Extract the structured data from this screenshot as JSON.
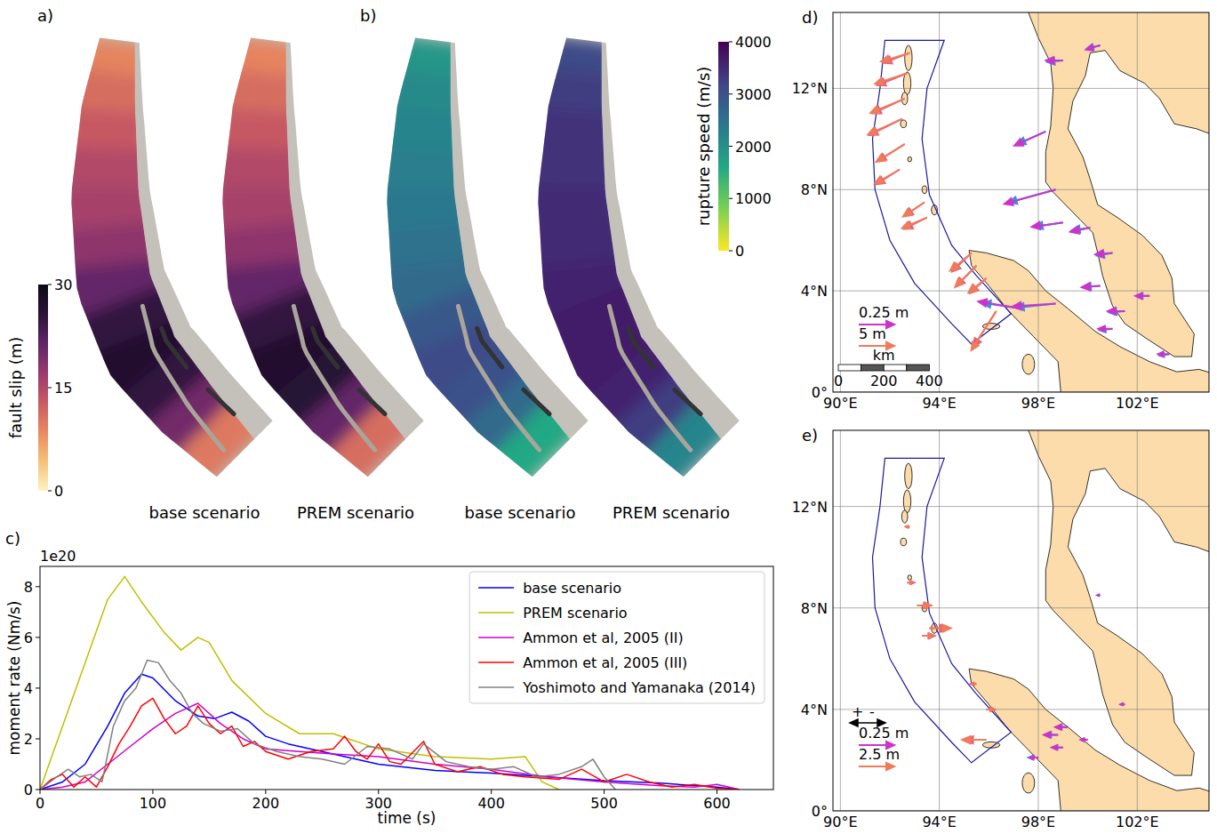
{
  "chart_data": [
    {
      "type": "fault_map",
      "panel": "a)",
      "colorbar": {
        "title": "fault slip (m)",
        "range": [
          0,
          30
        ],
        "ticks": [
          0,
          15,
          30
        ],
        "colors": [
          "#fcf3c4",
          "#f6c07a",
          "#e8895f",
          "#c85a63",
          "#9a3a6e",
          "#5e2566",
          "#2a1338",
          "#0d0a14"
        ]
      },
      "scenarios": [
        {
          "label": "base scenario",
          "values": [
            9,
            11,
            13,
            15,
            16,
            18,
            21,
            25,
            27,
            25,
            20,
            10
          ]
        },
        {
          "label": "PREM scenario",
          "values": [
            9,
            11,
            13,
            15,
            16,
            18,
            21,
            25,
            27,
            26,
            21,
            11
          ]
        }
      ]
    },
    {
      "type": "fault_map",
      "panel": "b)",
      "colorbar": {
        "title": "rupture speed (m/s)",
        "range": [
          0,
          4000
        ],
        "ticks": [
          0,
          1000,
          2000,
          3000,
          4000
        ],
        "colors": [
          "#fde725",
          "#7ad151",
          "#22a884",
          "#2a788e",
          "#414487",
          "#440154"
        ]
      },
      "scenarios": [
        {
          "label": "base scenario",
          "values": [
            1900,
            2100,
            2200,
            2300,
            2400,
            2500,
            2600,
            2900,
            3100,
            3000,
            2600,
            1600
          ]
        },
        {
          "label": "PREM scenario",
          "values": [
            3100,
            3300,
            3400,
            3400,
            3500,
            3500,
            3600,
            3700,
            3700,
            3600,
            3300,
            2200
          ]
        }
      ]
    },
    {
      "type": "line",
      "panel": "c)",
      "offset_label": "1e20",
      "x_label": "time (s)",
      "y_label": "moment rate (Nm/s)",
      "xlim": [
        0,
        650
      ],
      "ylim": [
        0,
        8.8
      ],
      "xticks": [
        0,
        100,
        200,
        300,
        400,
        500,
        600
      ],
      "yticks": [
        0,
        2,
        4,
        6,
        8
      ],
      "legend": "upper right",
      "series": [
        {
          "name": "base scenario",
          "color": "#0000ff",
          "x": [
            0,
            20,
            40,
            60,
            75,
            90,
            100,
            120,
            140,
            155,
            170,
            185,
            200,
            220,
            250,
            300,
            350,
            400,
            450,
            500,
            550,
            600,
            620
          ],
          "values": [
            0,
            0.3,
            1.0,
            2.5,
            3.8,
            4.55,
            4.4,
            3.5,
            2.9,
            2.8,
            3.05,
            2.7,
            2.1,
            1.8,
            1.5,
            1.0,
            0.75,
            0.65,
            0.5,
            0.35,
            0.25,
            0.1,
            0
          ]
        },
        {
          "name": "PREM scenario",
          "color": "#bfbf00",
          "x": [
            0,
            20,
            40,
            60,
            75,
            90,
            110,
            125,
            140,
            150,
            170,
            200,
            230,
            260,
            300,
            350,
            400,
            430,
            445,
            460
          ],
          "values": [
            0,
            2.5,
            5.0,
            7.5,
            8.4,
            7.4,
            6.2,
            5.5,
            6.0,
            5.8,
            4.3,
            3.0,
            2.2,
            2.2,
            1.6,
            1.3,
            1.2,
            1.3,
            0.3,
            0
          ]
        },
        {
          "name": "Ammon et al, 2005 (II)",
          "color": "#cc00cc",
          "x": [
            0,
            20,
            40,
            60,
            80,
            100,
            120,
            140,
            160,
            180,
            200,
            230,
            260,
            300,
            350,
            400,
            450,
            500,
            550,
            580,
            600,
            620
          ],
          "values": [
            0,
            0.1,
            0.3,
            1.0,
            1.7,
            2.4,
            3.0,
            3.4,
            2.6,
            2.0,
            1.6,
            1.5,
            1.4,
            1.3,
            1.0,
            0.8,
            0.5,
            0.3,
            0.15,
            0.1,
            0.2,
            0
          ]
        },
        {
          "name": "Ammon et al, 2005 (III)",
          "color": "#ff0000",
          "x": [
            0,
            10,
            20,
            30,
            40,
            50,
            60,
            70,
            80,
            90,
            100,
            110,
            120,
            130,
            140,
            150,
            160,
            170,
            180,
            190,
            200,
            220,
            240,
            260,
            270,
            280,
            290,
            300,
            310,
            320,
            340,
            350,
            370,
            390,
            410,
            430,
            460,
            480,
            500,
            520,
            540,
            560,
            580,
            600,
            620
          ],
          "values": [
            0,
            0.4,
            0.6,
            0.1,
            0.5,
            0.1,
            0.9,
            1.8,
            2.5,
            3.3,
            3.6,
            2.8,
            2.2,
            2.5,
            3.3,
            2.6,
            2.2,
            2.5,
            1.7,
            1.9,
            1.5,
            1.2,
            1.5,
            1.6,
            2.1,
            1.5,
            1.2,
            1.8,
            1.1,
            1.0,
            1.9,
            1.0,
            0.7,
            0.9,
            0.6,
            0.5,
            0.4,
            0.8,
            0.3,
            0.6,
            0.3,
            0.1,
            0.2,
            0.05,
            0
          ]
        },
        {
          "name": "Yoshimoto and Yamanaka (2014)",
          "color": "#808080",
          "x": [
            0,
            15,
            25,
            35,
            45,
            55,
            65,
            75,
            85,
            95,
            105,
            115,
            125,
            135,
            145,
            160,
            175,
            190,
            210,
            230,
            250,
            270,
            290,
            310,
            330,
            340,
            360,
            380,
            400,
            420,
            440,
            460,
            480,
            490,
            500,
            510
          ],
          "values": [
            0,
            0.5,
            0.8,
            0.5,
            0.6,
            0.3,
            2.5,
            3.5,
            4.0,
            5.1,
            5.0,
            4.3,
            3.8,
            3.0,
            2.6,
            2.3,
            2.4,
            1.8,
            1.5,
            1.3,
            1.2,
            1.0,
            1.7,
            1.6,
            1.2,
            1.8,
            1.1,
            0.9,
            0.8,
            0.9,
            0.5,
            0.6,
            0.9,
            1.2,
            0.5,
            0
          ]
        }
      ]
    },
    {
      "type": "vector_map",
      "panel": "d)",
      "grid": true,
      "xlim": [
        89.7,
        104.9
      ],
      "ylim": [
        0,
        15
      ],
      "xticks": [
        {
          "value": 90,
          "label": "90°E"
        },
        {
          "value": 94,
          "label": "94°E"
        },
        {
          "value": 98,
          "label": "98°E"
        },
        {
          "value": 102,
          "label": "102°E"
        }
      ],
      "yticks": [
        {
          "value": 0,
          "label": "0°"
        },
        {
          "value": 4,
          "label": "4°N"
        },
        {
          "value": 8,
          "label": "8°N"
        },
        {
          "value": 12,
          "label": "12°N"
        }
      ],
      "scale_arrows": [
        {
          "value": 0.25,
          "label": "0.25 m",
          "color": "#cc33cc",
          "series": [
            {
              "color": "#3d8fd6",
              "x": [
                98.7,
                98.3,
                99.0,
                100.5,
                100.1,
                99.0,
                101.0,
                100.5,
                98.7,
                101.5,
                102.5,
                103.3,
                101.0,
                97.3
              ],
              "y": [
                8.0,
                10.3,
                13.1,
                13.7,
                6.5,
                6.7,
                5.5,
                4.2,
                3.5,
                3.2,
                3.8,
                1.5,
                2.5,
                3.3
              ],
              "east": [
                -0.33,
                -0.2,
                -0.11,
                -0.09,
                -0.13,
                -0.2,
                -0.11,
                -0.12,
                -0.28,
                -0.11,
                -0.09,
                -0.07,
                -0.09,
                -0.27
              ],
              "north": [
                -0.09,
                -0.09,
                -0.01,
                -0.02,
                -0.02,
                -0.03,
                -0.02,
                -0.01,
                -0.03,
                -0.01,
                0.0,
                -0.01,
                -0.01,
                0.04
              ]
            },
            {
              "color": "#cc33cc",
              "x": [
                98.7,
                98.3,
                99.0,
                100.5,
                100.1,
                99.0,
                101.0,
                100.5,
                98.7,
                101.5,
                102.5,
                103.3,
                101.0,
                97.3
              ],
              "y": [
                8.0,
                10.3,
                13.1,
                13.7,
                6.5,
                6.7,
                5.5,
                4.2,
                3.5,
                3.2,
                3.8,
                1.5,
                2.5,
                3.3
              ],
              "east": [
                -0.36,
                -0.22,
                -0.12,
                -0.1,
                -0.14,
                -0.22,
                -0.12,
                -0.13,
                -0.3,
                -0.12,
                -0.1,
                -0.08,
                -0.1,
                -0.3
              ],
              "north": [
                -0.1,
                -0.1,
                0.0,
                -0.03,
                -0.03,
                -0.03,
                -0.01,
                -0.01,
                -0.02,
                0.0,
                0.0,
                0.0,
                0.0,
                0.05
              ]
            }
          ]
        },
        {
          "value": 5,
          "label": "5 m",
          "color": "#f07a5a",
          "series": [
            {
              "color": "#e0607a",
              "x": [
                92.8,
                92.7,
                92.6,
                92.5,
                92.6,
                92.4,
                93.4,
                93.5,
                95.3,
                95.5,
                95.9,
                96.3
              ],
              "y": [
                13.4,
                12.6,
                11.6,
                10.8,
                9.8,
                8.8,
                7.5,
                6.9,
                5.5,
                5.0,
                4.5,
                3.2
              ],
              "east": [
                -3.7,
                -4.2,
                -4.5,
                -4.6,
                -3.8,
                -3.3,
                -2.8,
                -3.2,
                -2.7,
                -2.8,
                -2.3,
                -3.2
              ],
              "north": [
                -1.4,
                -1.7,
                -2.1,
                -2.3,
                -2.4,
                -2.1,
                -1.9,
                -1.6,
                -2.6,
                -2.9,
                -2.1,
                -5.0
              ]
            },
            {
              "color": "#f07a5a",
              "x": [
                92.8,
                92.7,
                92.6,
                92.5,
                92.6,
                92.4,
                93.4,
                93.5,
                95.3,
                95.5,
                95.9,
                96.3
              ],
              "y": [
                13.4,
                12.6,
                11.6,
                10.8,
                9.8,
                8.8,
                7.5,
                6.9,
                5.5,
                5.0,
                4.5,
                3.2
              ],
              "east": [
                -4.0,
                -4.5,
                -4.8,
                -4.8,
                -4.0,
                -3.5,
                -3.0,
                -3.5,
                -3.0,
                -3.0,
                -2.5,
                -3.5
              ],
              "north": [
                -1.2,
                -1.5,
                -2.0,
                -2.2,
                -2.5,
                -2.0,
                -2.0,
                -1.5,
                -2.5,
                -3.0,
                -2.0,
                -5.5
              ]
            }
          ]
        }
      ],
      "scale_bar": {
        "title": "km",
        "ticks": [
          0,
          200,
          400
        ]
      }
    },
    {
      "type": "vector_map",
      "panel": "e)",
      "grid": true,
      "xlim": [
        89.7,
        104.9
      ],
      "ylim": [
        0,
        15
      ],
      "xticks": [
        {
          "value": 90,
          "label": "90°E"
        },
        {
          "value": 94,
          "label": "94°E"
        },
        {
          "value": 98,
          "label": "98°E"
        },
        {
          "value": 102,
          "label": "102°E"
        }
      ],
      "yticks": [
        {
          "value": 0,
          "label": "0°"
        },
        {
          "value": 4,
          "label": "4°N"
        },
        {
          "value": 8,
          "label": "8°N"
        },
        {
          "value": 12,
          "label": "12°N"
        }
      ],
      "direction_labels": [
        "+",
        "-"
      ],
      "scale_arrows": [
        {
          "value": 0.25,
          "label": "0.25 m",
          "color": "#cc33cc",
          "series": [
            {
              "color": "#3d8fd6",
              "x": [
                98.8,
                99.0,
                98.0,
                100.0,
                101.5,
                100.5,
                99.2
              ],
              "y": [
                3.0,
                2.5,
                2.1,
                2.8,
                4.2,
                8.5,
                3.3
              ],
              "values": [
                0.09,
                0.07,
                0.07,
                0.04,
                0.03,
                0.02,
                0.08
              ]
            },
            {
              "color": "#cc33cc",
              "x": [
                98.8,
                99.0,
                98.0,
                100.0,
                101.5,
                100.5,
                99.2
              ],
              "y": [
                3.0,
                2.5,
                2.1,
                2.8,
                4.2,
                8.5,
                3.3
              ],
              "values": [
                0.1,
                0.08,
                0.06,
                0.05,
                0.03,
                0.02,
                0.09
              ]
            }
          ]
        },
        {
          "value": 2.5,
          "label": "2.5 m",
          "color": "#f07a5a",
          "series": [
            {
              "color": "#e0607a",
              "x": [
                92.8,
                92.7,
                93.1,
                93.6,
                93.3,
                95.5,
                95.9,
                95.9
              ],
              "y": [
                11.2,
                9.0,
                8.1,
                7.2,
                6.9,
                5.0,
                4.0,
                2.8
              ],
              "values": [
                0.2,
                -0.5,
                -0.9,
                -1.3,
                -0.9,
                0.4,
                -0.6,
                1.5
              ]
            },
            {
              "color": "#f07a5a",
              "x": [
                92.8,
                92.7,
                93.1,
                93.6,
                93.3,
                95.5,
                95.9,
                95.9
              ],
              "y": [
                11.2,
                9.0,
                8.1,
                7.2,
                6.9,
                5.0,
                4.0,
                2.8
              ],
              "values": [
                0.3,
                -0.4,
                -1.0,
                -1.5,
                -0.8,
                0.3,
                -0.5,
                1.7
              ]
            }
          ]
        }
      ]
    }
  ]
}
